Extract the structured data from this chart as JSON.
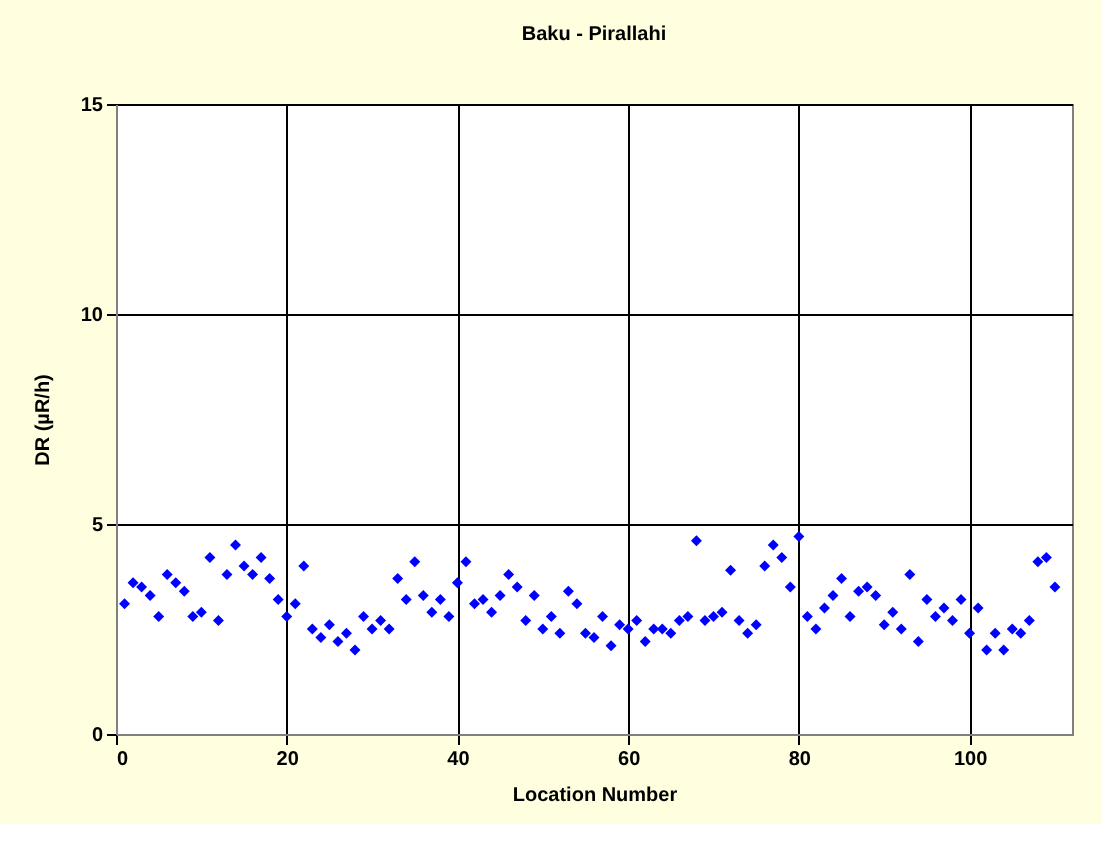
{
  "chart_data": {
    "type": "scatter",
    "title": "Baku - Pirallahi",
    "xlabel": "Location Number",
    "ylabel": "DR (µR/h)",
    "x": [
      1,
      2,
      3,
      4,
      5,
      6,
      7,
      8,
      9,
      10,
      11,
      12,
      13,
      14,
      15,
      16,
      17,
      18,
      19,
      20,
      21,
      22,
      23,
      24,
      25,
      26,
      27,
      28,
      29,
      30,
      31,
      32,
      33,
      34,
      35,
      36,
      37,
      38,
      39,
      40,
      41,
      42,
      43,
      44,
      45,
      46,
      47,
      48,
      49,
      50,
      51,
      52,
      53,
      54,
      55,
      56,
      57,
      58,
      59,
      60,
      61,
      62,
      63,
      64,
      65,
      66,
      67,
      68,
      69,
      70,
      71,
      72,
      73,
      74,
      75,
      76,
      77,
      78,
      79,
      80,
      81,
      82,
      83,
      84,
      85,
      86,
      87,
      88,
      89,
      90,
      91,
      92,
      93,
      94,
      95,
      96,
      97,
      98,
      99,
      100,
      101,
      102,
      103,
      104,
      105,
      106,
      107,
      108,
      109,
      110
    ],
    "series": [
      {
        "color": "#0000ff",
        "values": [
          3.1,
          3.6,
          3.5,
          3.3,
          2.8,
          3.8,
          3.6,
          3.4,
          2.8,
          2.9,
          4.2,
          2.7,
          3.8,
          4.5,
          4.0,
          3.8,
          4.2,
          3.7,
          3.2,
          2.8,
          3.1,
          4.0,
          2.5,
          2.3,
          2.6,
          2.2,
          2.4,
          2.0,
          2.8,
          2.5,
          2.7,
          2.5,
          3.7,
          3.2,
          4.1,
          3.3,
          2.9,
          3.2,
          2.8,
          3.6,
          4.1,
          3.1,
          3.2,
          2.9,
          3.3,
          3.8,
          3.5,
          2.7,
          3.3,
          2.5,
          2.8,
          2.4,
          3.4,
          3.1,
          2.4,
          2.3,
          2.8,
          2.1,
          2.6,
          2.5,
          2.7,
          2.2,
          2.5,
          2.5,
          2.4,
          2.7,
          2.8,
          4.6,
          2.7,
          2.8,
          2.9,
          3.9,
          2.7,
          2.4,
          2.6,
          4.0,
          4.5,
          4.2,
          3.5,
          4.7,
          2.8,
          2.5,
          3.0,
          3.3,
          3.7,
          2.8,
          3.4,
          3.5,
          3.3,
          2.6,
          2.9,
          2.5,
          3.8,
          2.2,
          3.2,
          2.8,
          3.0,
          2.7,
          3.2,
          2.4,
          3.0,
          2.0,
          2.4,
          2.0,
          2.5,
          2.4,
          2.7,
          4.1,
          4.2,
          3.5
        ]
      }
    ],
    "xlim": [
      0,
      112
    ],
    "xticks": [
      0,
      20,
      40,
      60,
      80,
      100
    ],
    "ylim": [
      0,
      15
    ],
    "yticks": [
      0,
      5,
      10,
      15
    ],
    "grid": true,
    "marker": "diamond",
    "legend": false
  }
}
